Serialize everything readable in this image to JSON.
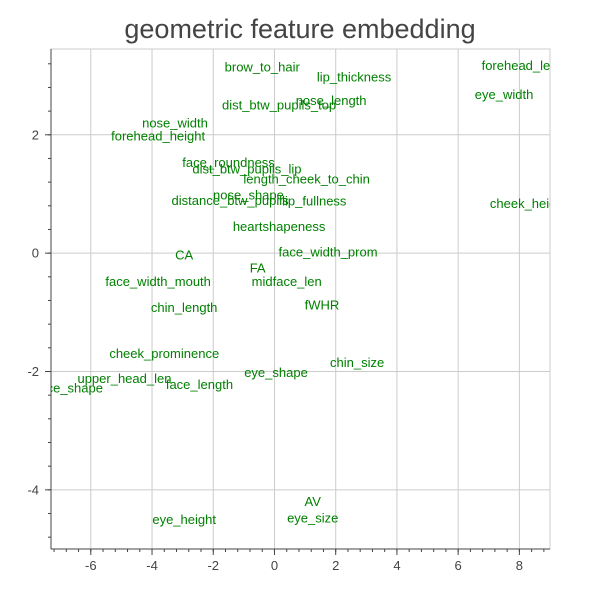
{
  "chart_data": {
    "type": "scatter",
    "title": "geometric feature embedding",
    "xlabel": "",
    "ylabel": "",
    "xlim": [
      -7.3,
      9.0
    ],
    "ylim": [
      -5.0,
      3.45
    ],
    "x_ticks": [
      "-6",
      "-4",
      "-2",
      "0",
      "2",
      "4",
      "6",
      "8"
    ],
    "y_ticks": [
      "-4",
      "-2",
      "0",
      "2"
    ],
    "x_tick_values": [
      -6,
      -4,
      -2,
      0,
      2,
      4,
      6,
      8
    ],
    "y_tick_values": [
      -4,
      -2,
      0,
      2
    ],
    "grid": true,
    "legend": "none",
    "label_color": "#008000",
    "grid_color": "#cccccc",
    "points": [
      {
        "label": "brow_to_hair",
        "x": -0.4,
        "y": 3.15
      },
      {
        "label": "lip_thickness",
        "x": 2.6,
        "y": 2.98
      },
      {
        "label": "forehead_length",
        "x": 8.3,
        "y": 3.17
      },
      {
        "label": "eye_width",
        "x": 7.5,
        "y": 2.68
      },
      {
        "label": "nose_length",
        "x": 1.85,
        "y": 2.58
      },
      {
        "label": "dist_btw_pupils_top",
        "x": 0.15,
        "y": 2.5
      },
      {
        "label": "nose_width",
        "x": -3.25,
        "y": 2.2
      },
      {
        "label": "forehead_height",
        "x": -3.8,
        "y": 1.98
      },
      {
        "label": "face_roundness",
        "x": -1.5,
        "y": 1.53
      },
      {
        "label": "dist_btw_pupils_lip",
        "x": -0.9,
        "y": 1.42
      },
      {
        "label": "length_cheek_to_chin",
        "x": 1.05,
        "y": 1.25
      },
      {
        "label": "nose_shape",
        "x": -0.85,
        "y": 0.98
      },
      {
        "label": "distance_btw_pupils",
        "x": -1.45,
        "y": 0.89
      },
      {
        "label": "lip_fullness",
        "x": 1.3,
        "y": 0.88
      },
      {
        "label": "cheek_height",
        "x": 8.3,
        "y": 0.84
      },
      {
        "label": "heartshapeness",
        "x": 0.15,
        "y": 0.45
      },
      {
        "label": "CA",
        "x": -2.95,
        "y": -0.03
      },
      {
        "label": "face_width_prom",
        "x": 1.75,
        "y": 0.02
      },
      {
        "label": "FA",
        "x": -0.55,
        "y": -0.25
      },
      {
        "label": "face_width_mouth",
        "x": -3.8,
        "y": -0.48
      },
      {
        "label": "midface_len",
        "x": 0.4,
        "y": -0.48
      },
      {
        "label": "chin_length",
        "x": -2.95,
        "y": -0.92
      },
      {
        "label": "fWHR",
        "x": 1.55,
        "y": -0.88
      },
      {
        "label": "cheek_prominence",
        "x": -3.6,
        "y": -1.7
      },
      {
        "label": "chin_size",
        "x": 2.7,
        "y": -1.85
      },
      {
        "label": "eye_shape",
        "x": 0.05,
        "y": -2.02
      },
      {
        "label": "upper_head_len",
        "x": -4.9,
        "y": -2.12
      },
      {
        "label": "face_length",
        "x": -2.45,
        "y": -2.22
      },
      {
        "label": "face_shape",
        "x": -6.7,
        "y": -2.28
      },
      {
        "label": "AV",
        "x": 1.25,
        "y": -4.2
      },
      {
        "label": "eye_height",
        "x": -2.95,
        "y": -4.5
      },
      {
        "label": "eye_size",
        "x": 1.25,
        "y": -4.48
      }
    ]
  }
}
